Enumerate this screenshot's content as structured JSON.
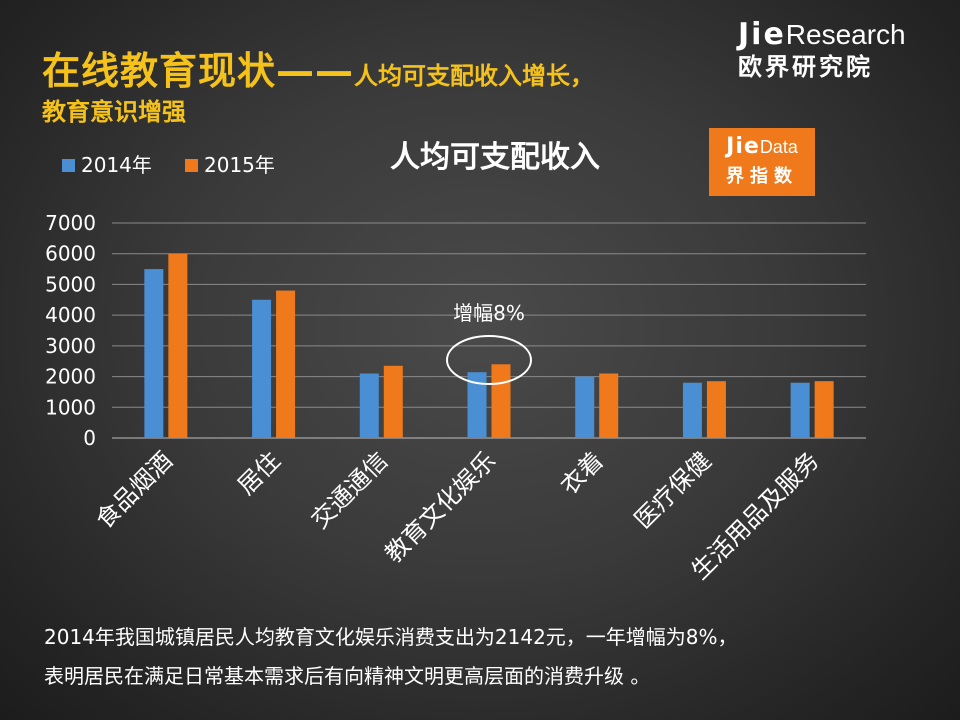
{
  "slide": {
    "title_main": "在线教育现状——",
    "title_sub": "人均可支配收入增长，",
    "title_line2": "教育意识增强"
  },
  "brand": {
    "name_bold": "Jie",
    "name_light": "Research",
    "name_cn": "欧界研究院"
  },
  "badge": {
    "name_bold": "Jie",
    "name_light": "Data",
    "name_cn": "界指数"
  },
  "footnote": {
    "line1": "2014年我国城镇居民人均教育文化娱乐消费支出为2142元，一年增幅为8%，",
    "line2": "表明居民在满足日常基本需求后有向精神文明更高层面的消费升级 。"
  },
  "colors": {
    "series_2014": "#4a8fd4",
    "series_2015": "#f07a1b",
    "highlight": "#f5c21b"
  },
  "chart_data": {
    "type": "bar",
    "title": "人均可支配收入",
    "categories": [
      "食品烟酒",
      "居住",
      "交通通信",
      "教育文化娱乐",
      "衣着",
      "医疗保健",
      "生活用品及服务"
    ],
    "series": [
      {
        "name": "2014年",
        "values": [
          5500,
          4500,
          2100,
          2142,
          2000,
          1800,
          1800
        ]
      },
      {
        "name": "2015年",
        "values": [
          6000,
          4800,
          2350,
          2400,
          2100,
          1850,
          1850
        ]
      }
    ],
    "ylim": [
      0,
      7000
    ],
    "yticks": [
      0,
      1000,
      2000,
      3000,
      4000,
      5000,
      6000,
      7000
    ],
    "grid": true,
    "legend": "top-left",
    "annotation": {
      "text": "增幅8%",
      "category": "教育文化娱乐"
    }
  }
}
